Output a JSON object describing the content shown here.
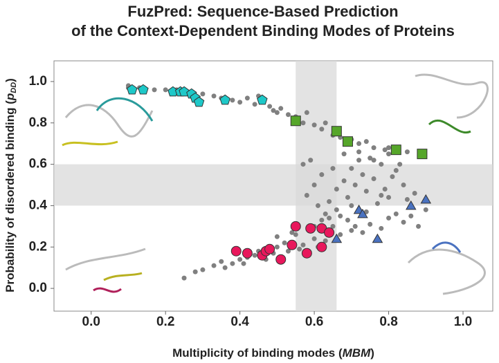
{
  "chart_data": {
    "type": "scatter",
    "title": [
      "FuzPred: Sequence-Based Prediction",
      "of the Context-Dependent Binding Modes of Proteins"
    ],
    "xlabel": {
      "text": "Multiplicity of binding modes (",
      "var": "MBM",
      "end": ")"
    },
    "ylabel": {
      "text": "Probability of disordered binding (",
      "var": "p",
      "sub": "DD",
      "end": ")"
    },
    "xlim": [
      -0.1,
      1.08
    ],
    "ylim": [
      -0.11,
      1.1
    ],
    "xticks": [
      {
        "value": 0,
        "label": "0.0"
      },
      0.2,
      0.4,
      0.6,
      0.8,
      {
        "value": 1,
        "label": "1.0"
      }
    ],
    "yticks": [
      {
        "value": 0,
        "label": "0.0"
      },
      0.2,
      0.4,
      0.6,
      0.8,
      {
        "value": 1,
        "label": "1.0"
      }
    ],
    "shaded_x": [
      0.55,
      0.66
    ],
    "shaded_y": [
      0.4,
      0.6
    ],
    "shade_color": "#d9d9d9",
    "series": [
      {
        "color": "#808080",
        "marker": "circle",
        "x": [
          0.1,
          0.1,
          0.13,
          0.17,
          0.2,
          0.23,
          0.26,
          0.3,
          0.33,
          0.35,
          0.38,
          0.4,
          0.42,
          0.44,
          0.45,
          0.48,
          0.49,
          0.5,
          0.51,
          0.53,
          0.55,
          0.57,
          0.58,
          0.6,
          0.62,
          0.63,
          0.65,
          0.67,
          0.7,
          0.72,
          0.74,
          0.76,
          0.79,
          0.8,
          0.85,
          0.25,
          0.28,
          0.3,
          0.33,
          0.35,
          0.38,
          0.4,
          0.42,
          0.45,
          0.5,
          0.52,
          0.56,
          0.6,
          0.65,
          0.69,
          0.36,
          0.41,
          0.44,
          0.47,
          0.49,
          0.53,
          0.57,
          0.61,
          0.63,
          0.67,
          0.7,
          0.71,
          0.73,
          0.75,
          0.78,
          0.8,
          0.82,
          0.84,
          0.86,
          0.88,
          0.9,
          0.58,
          0.6,
          0.62,
          0.64,
          0.66,
          0.68,
          0.7,
          0.72,
          0.74,
          0.76,
          0.78,
          0.8,
          0.82,
          0.84,
          0.87,
          0.57,
          0.59,
          0.61,
          0.63,
          0.65,
          0.67,
          0.69,
          0.71,
          0.73,
          0.75,
          0.77,
          0.79,
          0.81,
          0.83,
          0.85,
          0.68,
          0.72,
          0.76,
          0.8,
          0.64,
          0.7,
          0.74,
          0.78,
          0.6,
          0.55,
          0.62,
          0.66,
          0.5,
          0.54
        ],
        "values": [
          0.98,
          0.97,
          0.97,
          0.96,
          0.96,
          0.96,
          0.95,
          0.94,
          0.93,
          0.92,
          0.91,
          0.9,
          0.92,
          0.89,
          0.93,
          0.88,
          0.86,
          0.85,
          0.87,
          0.84,
          0.83,
          0.8,
          0.85,
          0.79,
          0.77,
          0.8,
          0.74,
          0.73,
          0.72,
          0.7,
          0.71,
          0.68,
          0.67,
          0.65,
          0.66,
          0.05,
          0.08,
          0.09,
          0.11,
          0.13,
          0.12,
          0.14,
          0.15,
          0.18,
          0.2,
          0.22,
          0.19,
          0.24,
          0.3,
          0.33,
          0.1,
          0.12,
          0.16,
          0.14,
          0.17,
          0.18,
          0.21,
          0.2,
          0.23,
          0.26,
          0.28,
          0.3,
          0.27,
          0.31,
          0.29,
          0.34,
          0.36,
          0.32,
          0.35,
          0.3,
          0.38,
          0.45,
          0.5,
          0.55,
          0.42,
          0.48,
          0.52,
          0.58,
          0.62,
          0.47,
          0.53,
          0.6,
          0.44,
          0.57,
          0.5,
          0.46,
          0.6,
          0.62,
          0.4,
          0.36,
          0.58,
          0.35,
          0.44,
          0.5,
          0.55,
          0.63,
          0.41,
          0.48,
          0.54,
          0.6,
          0.43,
          0.65,
          0.66,
          0.62,
          0.68,
          0.34,
          0.4,
          0.37,
          0.45,
          0.3,
          0.26,
          0.33,
          0.38,
          0.25,
          0.27
        ]
      },
      {
        "color": "#1ec8c8",
        "marker": "pentagon",
        "x": [
          0.11,
          0.14,
          0.22,
          0.24,
          0.25,
          0.27,
          0.28,
          0.29,
          0.36,
          0.46
        ],
        "values": [
          0.96,
          0.96,
          0.95,
          0.95,
          0.95,
          0.94,
          0.92,
          0.9,
          0.91,
          0.91
        ]
      },
      {
        "color": "#56a62a",
        "marker": "square",
        "x": [
          0.55,
          0.66,
          0.69,
          0.82,
          0.89
        ],
        "values": [
          0.81,
          0.76,
          0.71,
          0.67,
          0.65
        ]
      },
      {
        "color": "#e8185c",
        "marker": "circle-big",
        "x": [
          0.39,
          0.42,
          0.46,
          0.47,
          0.48,
          0.51,
          0.54,
          0.55,
          0.58,
          0.59,
          0.62,
          0.64,
          0.62
        ],
        "values": [
          0.18,
          0.17,
          0.16,
          0.18,
          0.19,
          0.14,
          0.21,
          0.3,
          0.17,
          0.29,
          0.29,
          0.27,
          0.2
        ]
      },
      {
        "color": "#4a72c0",
        "marker": "triangle",
        "x": [
          0.66,
          0.72,
          0.73,
          0.77,
          0.86,
          0.9
        ],
        "values": [
          0.24,
          0.38,
          0.36,
          0.24,
          0.4,
          0.43
        ]
      }
    ]
  }
}
